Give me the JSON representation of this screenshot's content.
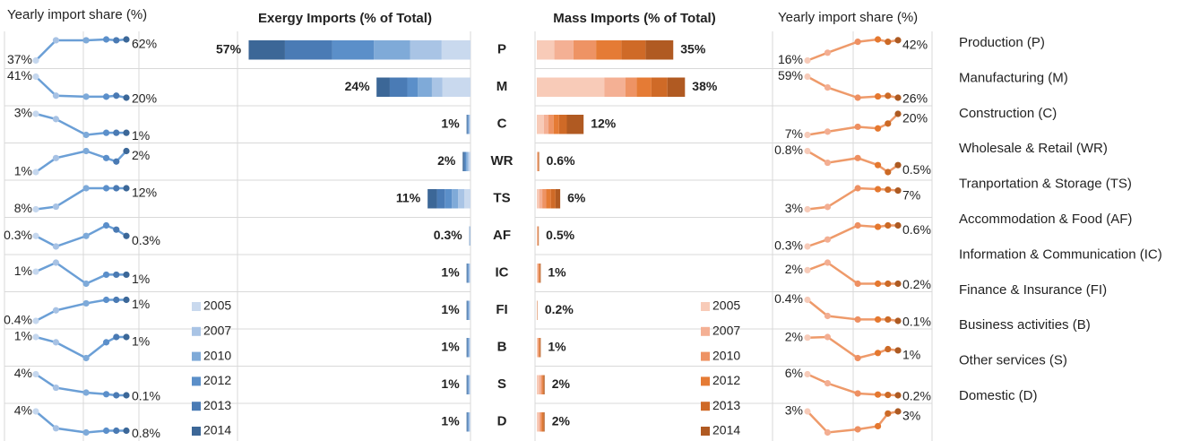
{
  "chart_data": [
    {
      "type": "line",
      "title": "Yearly import share (%)",
      "x": [
        2005,
        2007,
        2010,
        2012,
        2013,
        2014
      ],
      "color": "#6b9fd6",
      "point_colors": [
        "#c5d7ee",
        "#a7c2e4",
        "#7eaad9",
        "#5b8fca",
        "#4a7ab3",
        "#3b6798"
      ],
      "series": [
        {
          "values": [
            37,
            61,
            61,
            62,
            61,
            62
          ],
          "value_labels": [
            "37%",
            null,
            null,
            null,
            null,
            "62%"
          ]
        },
        {
          "values": [
            41,
            22,
            21,
            21,
            22,
            20
          ],
          "value_labels": [
            "41%",
            null,
            null,
            null,
            null,
            "20%"
          ]
        },
        {
          "values": [
            3,
            2.5,
            1,
            1.2,
            1.2,
            1.2
          ],
          "value_labels": [
            "3%",
            null,
            null,
            null,
            null,
            "1%"
          ]
        },
        {
          "values": [
            1,
            1.4,
            1.6,
            1.4,
            1.3,
            1.6
          ],
          "value_labels": [
            "1%",
            null,
            null,
            null,
            null,
            "2%"
          ]
        },
        {
          "values": [
            8,
            8.5,
            12,
            12,
            12,
            12
          ],
          "value_labels": [
            "8%",
            null,
            null,
            null,
            null,
            "12%"
          ]
        },
        {
          "values": [
            0.3,
            0.25,
            0.3,
            0.35,
            0.33,
            0.3
          ],
          "value_labels": [
            "0.3%",
            null,
            null,
            null,
            null,
            "0.3%"
          ]
        },
        {
          "values": [
            1,
            1.3,
            0.6,
            0.9,
            0.9,
            0.9
          ],
          "value_labels": [
            "1%",
            null,
            null,
            null,
            null,
            "1%"
          ]
        },
        {
          "values": [
            0.4,
            0.7,
            0.9,
            1.0,
            1.0,
            1.0
          ],
          "value_labels": [
            "0.4%",
            null,
            null,
            null,
            null,
            "1%"
          ]
        },
        {
          "values": [
            1.0,
            0.95,
            0.8,
            0.95,
            1.0,
            1.0
          ],
          "value_labels": [
            "1%",
            null,
            null,
            null,
            null,
            "1%"
          ]
        },
        {
          "values": [
            4,
            1.5,
            0.6,
            0.3,
            0.1,
            0.1
          ],
          "value_labels": [
            "4%",
            null,
            null,
            null,
            null,
            "0.1%"
          ]
        },
        {
          "values": [
            4,
            1.2,
            0.5,
            0.8,
            0.8,
            0.8
          ],
          "value_labels": [
            "4%",
            null,
            null,
            null,
            null,
            "0.8%"
          ]
        }
      ]
    },
    {
      "type": "bar",
      "title": "Exergy Imports (% of Total)",
      "categories": [
        "P",
        "M",
        "C",
        "WR",
        "TS",
        "AF",
        "IC",
        "FI",
        "B",
        "S",
        "D"
      ],
      "totals": [
        57,
        24,
        1,
        2,
        11,
        0.3,
        1,
        1,
        1,
        1,
        1
      ],
      "total_labels": [
        "57%",
        "24%",
        "1%",
        "2%",
        "11%",
        "0.3%",
        "1%",
        "1%",
        "1%",
        "1%",
        "1%"
      ],
      "series": [
        {
          "name": "2005",
          "color": "#c9d9ee",
          "values": [
            7.4,
            7.2,
            0.2,
            0.4,
            1.6,
            0.06,
            0.2,
            0.2,
            0.2,
            0.2,
            0.2
          ]
        },
        {
          "name": "2007",
          "color": "#a9c4e5",
          "values": [
            8.1,
            2.7,
            0.17,
            0.34,
            1.6,
            0.05,
            0.17,
            0.17,
            0.17,
            0.17,
            0.17
          ]
        },
        {
          "name": "2010",
          "color": "#7faad8",
          "values": [
            9.3,
            3.6,
            0.17,
            0.34,
            1.6,
            0.05,
            0.17,
            0.17,
            0.17,
            0.17,
            0.17
          ]
        },
        {
          "name": "2012",
          "color": "#5b8fc9",
          "values": [
            10.7,
            2.7,
            0.16,
            0.32,
            1.8,
            0.05,
            0.16,
            0.16,
            0.16,
            0.16,
            0.16
          ]
        },
        {
          "name": "2013",
          "color": "#4a7bb5",
          "values": [
            12.1,
            4.5,
            0.15,
            0.3,
            2.0,
            0.05,
            0.15,
            0.15,
            0.15,
            0.15,
            0.15
          ]
        },
        {
          "name": "2014",
          "color": "#3c6797",
          "values": [
            9.3,
            3.4,
            0.15,
            0.3,
            2.4,
            0.04,
            0.15,
            0.15,
            0.15,
            0.15,
            0.15
          ]
        }
      ]
    },
    {
      "type": "bar",
      "title": "Mass Imports (% of Total)",
      "totals": [
        35,
        38,
        12,
        0.6,
        6,
        0.5,
        1,
        0.2,
        1,
        2,
        2
      ],
      "total_labels": [
        "35%",
        "38%",
        "12%",
        "0.6%",
        "6%",
        "0.5%",
        "1%",
        "0.2%",
        "1%",
        "2%",
        "2%"
      ],
      "series": [
        {
          "name": "2005",
          "color": "#f8cbb8",
          "values": [
            4.5,
            17.3,
            1.8,
            0.08,
            0.6,
            0.07,
            0.2,
            0.04,
            0.2,
            0.6,
            0.5
          ]
        },
        {
          "name": "2007",
          "color": "#f4b094",
          "values": [
            4.9,
            5.4,
            1.2,
            0.08,
            0.8,
            0.07,
            0.17,
            0.03,
            0.17,
            0.5,
            0.4
          ]
        },
        {
          "name": "2010",
          "color": "#ee9364",
          "values": [
            5.8,
            2.9,
            1.3,
            0.1,
            1.0,
            0.08,
            0.17,
            0.03,
            0.17,
            0.3,
            0.3
          ]
        },
        {
          "name": "2012",
          "color": "#e57b35",
          "values": [
            6.5,
            3.8,
            1.4,
            0.11,
            1.2,
            0.09,
            0.16,
            0.03,
            0.16,
            0.2,
            0.3
          ]
        },
        {
          "name": "2013",
          "color": "#cf6a27",
          "values": [
            6.2,
            4.1,
            2.0,
            0.11,
            1.2,
            0.09,
            0.15,
            0.03,
            0.15,
            0.2,
            0.3
          ]
        },
        {
          "name": "2014",
          "color": "#b05a22",
          "values": [
            7.1,
            4.5,
            4.3,
            0.12,
            1.2,
            0.1,
            0.15,
            0.04,
            0.15,
            0.2,
            0.2
          ]
        }
      ]
    },
    {
      "type": "line",
      "title": "Yearly import share (%)",
      "x": [
        2005,
        2007,
        2010,
        2012,
        2013,
        2014
      ],
      "color": "#ee9a6a",
      "point_colors": [
        "#f7cbb9",
        "#f3ae92",
        "#ee9062",
        "#e5782f",
        "#cc6a26",
        "#ad5a22"
      ],
      "categories": [
        "Production (P)",
        "Manufacturing (M)",
        "Construction (C)",
        "Wholesale & Retail (WR)",
        "Tranportation & Storage (TS)",
        "Accommodation & Food (AF)",
        "Information & Communication (IC)",
        "Finance & Insurance (FI)",
        "Business activities (B)",
        "Other services (S)",
        "Domestic (D)"
      ],
      "series": [
        {
          "values": [
            16,
            26,
            40,
            43,
            40,
            42
          ],
          "value_labels": [
            "16%",
            null,
            null,
            null,
            null,
            "42%"
          ]
        },
        {
          "values": [
            59,
            42,
            26,
            28,
            29,
            26
          ],
          "value_labels": [
            "59%",
            null,
            null,
            null,
            null,
            "26%"
          ]
        },
        {
          "values": [
            7,
            9,
            12,
            11,
            14,
            20
          ],
          "value_labels": [
            "7%",
            null,
            null,
            null,
            null,
            "20%"
          ]
        },
        {
          "values": [
            0.8,
            0.55,
            0.65,
            0.5,
            0.35,
            0.5
          ],
          "value_labels": [
            "0.8%",
            null,
            null,
            null,
            null,
            "0.5%"
          ]
        },
        {
          "values": [
            3,
            3.5,
            7.5,
            7.3,
            7.2,
            7
          ],
          "value_labels": [
            "3%",
            null,
            null,
            null,
            null,
            "7%"
          ]
        },
        {
          "values": [
            0.3,
            0.4,
            0.6,
            0.58,
            0.6,
            0.6
          ],
          "value_labels": [
            "0.3%",
            null,
            null,
            null,
            null,
            "0.6%"
          ]
        },
        {
          "values": [
            2,
            3,
            0.2,
            0.2,
            0.2,
            0.2
          ],
          "value_labels": [
            "2%",
            null,
            null,
            null,
            null,
            "0.2%"
          ]
        },
        {
          "values": [
            0.4,
            0.17,
            0.12,
            0.12,
            0.12,
            0.1
          ],
          "value_labels": [
            "0.4%",
            null,
            null,
            null,
            null,
            "0.1%"
          ]
        },
        {
          "values": [
            2,
            2.05,
            0.4,
            0.8,
            1.1,
            1.0
          ],
          "value_labels": [
            "2%",
            null,
            null,
            null,
            null,
            "1%"
          ]
        },
        {
          "values": [
            6,
            3.5,
            0.7,
            0.4,
            0.3,
            0.2
          ],
          "value_labels": [
            "6%",
            null,
            null,
            null,
            null,
            "0.2%"
          ]
        },
        {
          "values": [
            3,
            1.0,
            1.3,
            1.6,
            2.8,
            3
          ],
          "value_labels": [
            "3%",
            null,
            null,
            null,
            null,
            "3%"
          ]
        }
      ]
    }
  ]
}
